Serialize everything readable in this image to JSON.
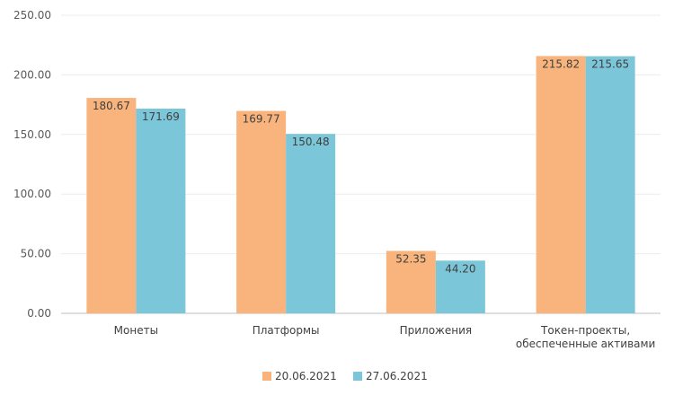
{
  "chart_data": {
    "type": "bar",
    "categories": [
      [
        "Монеты"
      ],
      [
        "Платформы"
      ],
      [
        "Приложения"
      ],
      [
        "Токен-проекты,",
        "обеспеченные активами"
      ]
    ],
    "series": [
      {
        "name": "20.06.2021",
        "color": "#F8B47C",
        "values": [
          180.67,
          169.77,
          52.35,
          215.82
        ],
        "labels": [
          "180.67",
          "169.77",
          "52.35",
          "215.82"
        ]
      },
      {
        "name": "27.06.2021",
        "color": "#7CC6D9",
        "values": [
          171.69,
          150.48,
          44.2,
          215.65
        ],
        "labels": [
          "171.69",
          "150.48",
          "44.20",
          "215.65"
        ]
      }
    ],
    "yticks": [
      "0.00",
      "50.00",
      "100.00",
      "150.00",
      "200.00",
      "250.00"
    ],
    "ylim": [
      0,
      250
    ],
    "grid": true,
    "legend_position": "bottom",
    "title": "",
    "xlabel": "",
    "ylabel": ""
  }
}
